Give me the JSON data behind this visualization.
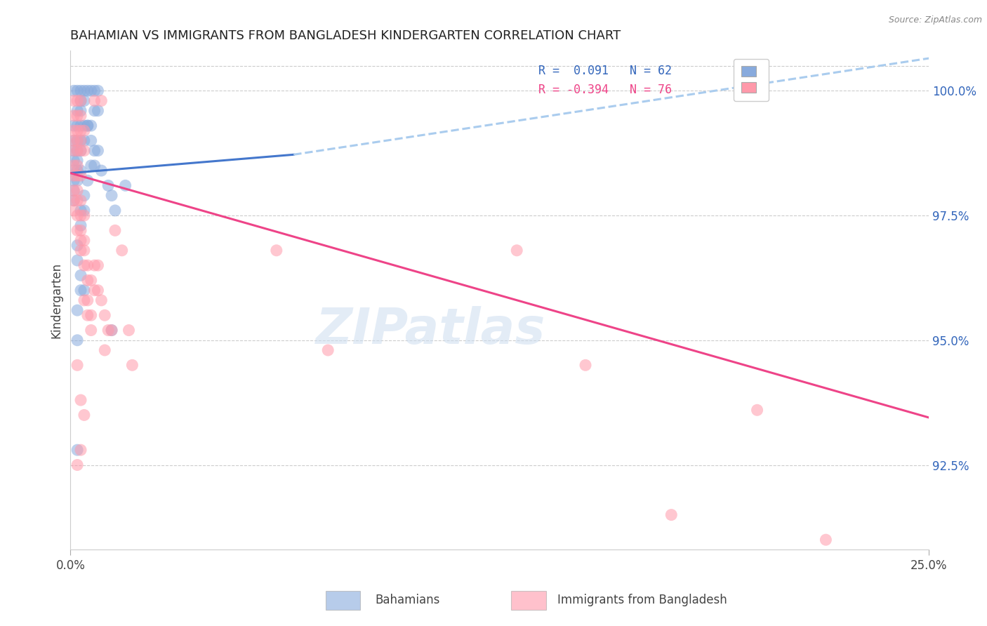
{
  "title": "BAHAMIAN VS IMMIGRANTS FROM BANGLADESH KINDERGARTEN CORRELATION CHART",
  "source": "Source: ZipAtlas.com",
  "ylabel_label": "Kindergarten",
  "legend_blue_label": "Bahamians",
  "legend_pink_label": "Immigrants from Bangladesh",
  "blue_R": 0.091,
  "blue_N": 62,
  "pink_R": -0.394,
  "pink_N": 76,
  "blue_color": "#88AADD",
  "pink_color": "#FF99AA",
  "blue_line_color": "#4477CC",
  "pink_line_color": "#EE4488",
  "dashed_line_color": "#AACCEE",
  "watermark": "ZIPatlas",
  "xmin": 0.0,
  "xmax": 0.25,
  "ymin": 90.8,
  "ymax": 100.8,
  "ytick_positions": [
    92.5,
    95.0,
    97.5,
    100.0
  ],
  "ytick_labels": [
    "92.5%",
    "95.0%",
    "97.5%",
    "100.0%"
  ],
  "xtick_positions": [
    0.0,
    0.25
  ],
  "xtick_labels": [
    "0.0%",
    "25.0%"
  ],
  "blue_line_x1": 0.0,
  "blue_line_y1": 98.35,
  "blue_line_x2_solid": 0.065,
  "blue_line_y2_solid": 98.72,
  "blue_line_x2_dashed": 0.25,
  "blue_line_y2_dashed": 100.65,
  "pink_line_x1": 0.0,
  "pink_line_y1": 98.35,
  "pink_line_x2": 0.25,
  "pink_line_y2": 93.45,
  "blue_scatter": [
    [
      0.001,
      100.0
    ],
    [
      0.002,
      100.0
    ],
    [
      0.003,
      100.0
    ],
    [
      0.004,
      100.0
    ],
    [
      0.005,
      100.0
    ],
    [
      0.006,
      100.0
    ],
    [
      0.007,
      100.0
    ],
    [
      0.008,
      100.0
    ],
    [
      0.002,
      99.6
    ],
    [
      0.003,
      99.6
    ],
    [
      0.007,
      99.6
    ],
    [
      0.008,
      99.6
    ],
    [
      0.003,
      99.8
    ],
    [
      0.004,
      99.8
    ],
    [
      0.001,
      99.3
    ],
    [
      0.002,
      99.3
    ],
    [
      0.003,
      99.3
    ],
    [
      0.005,
      99.3
    ],
    [
      0.006,
      99.3
    ],
    [
      0.004,
      99.3
    ],
    [
      0.005,
      99.3
    ],
    [
      0.001,
      99.0
    ],
    [
      0.002,
      99.0
    ],
    [
      0.003,
      99.0
    ],
    [
      0.004,
      99.0
    ],
    [
      0.001,
      98.8
    ],
    [
      0.002,
      98.8
    ],
    [
      0.003,
      98.8
    ],
    [
      0.001,
      98.6
    ],
    [
      0.002,
      98.6
    ],
    [
      0.001,
      98.4
    ],
    [
      0.002,
      98.4
    ],
    [
      0.003,
      98.4
    ],
    [
      0.001,
      98.2
    ],
    [
      0.002,
      98.2
    ],
    [
      0.001,
      98.0
    ],
    [
      0.001,
      97.8
    ],
    [
      0.007,
      98.8
    ],
    [
      0.008,
      98.8
    ],
    [
      0.006,
      98.5
    ],
    [
      0.007,
      98.5
    ],
    [
      0.006,
      99.0
    ],
    [
      0.005,
      98.2
    ],
    [
      0.004,
      97.9
    ],
    [
      0.003,
      97.6
    ],
    [
      0.004,
      97.6
    ],
    [
      0.003,
      97.3
    ],
    [
      0.002,
      96.9
    ],
    [
      0.002,
      96.6
    ],
    [
      0.003,
      96.3
    ],
    [
      0.003,
      96.0
    ],
    [
      0.004,
      96.0
    ],
    [
      0.002,
      95.6
    ],
    [
      0.002,
      95.0
    ],
    [
      0.002,
      92.8
    ],
    [
      0.009,
      98.4
    ],
    [
      0.011,
      98.1
    ],
    [
      0.012,
      97.9
    ],
    [
      0.016,
      98.1
    ],
    [
      0.013,
      97.6
    ],
    [
      0.012,
      95.2
    ]
  ],
  "pink_scatter": [
    [
      0.001,
      99.8
    ],
    [
      0.002,
      99.8
    ],
    [
      0.003,
      99.8
    ],
    [
      0.007,
      99.8
    ],
    [
      0.009,
      99.8
    ],
    [
      0.001,
      99.5
    ],
    [
      0.002,
      99.5
    ],
    [
      0.003,
      99.5
    ],
    [
      0.001,
      99.2
    ],
    [
      0.002,
      99.2
    ],
    [
      0.003,
      99.2
    ],
    [
      0.004,
      99.2
    ],
    [
      0.001,
      99.0
    ],
    [
      0.002,
      99.0
    ],
    [
      0.003,
      99.0
    ],
    [
      0.001,
      98.8
    ],
    [
      0.002,
      98.8
    ],
    [
      0.003,
      98.8
    ],
    [
      0.004,
      98.8
    ],
    [
      0.001,
      98.5
    ],
    [
      0.002,
      98.5
    ],
    [
      0.001,
      98.3
    ],
    [
      0.002,
      98.3
    ],
    [
      0.003,
      98.3
    ],
    [
      0.001,
      98.0
    ],
    [
      0.002,
      98.0
    ],
    [
      0.001,
      97.8
    ],
    [
      0.002,
      97.8
    ],
    [
      0.003,
      97.8
    ],
    [
      0.002,
      97.5
    ],
    [
      0.003,
      97.5
    ],
    [
      0.004,
      97.5
    ],
    [
      0.002,
      97.2
    ],
    [
      0.003,
      97.2
    ],
    [
      0.003,
      97.0
    ],
    [
      0.004,
      97.0
    ],
    [
      0.003,
      96.8
    ],
    [
      0.004,
      96.8
    ],
    [
      0.004,
      96.5
    ],
    [
      0.005,
      96.5
    ],
    [
      0.005,
      96.2
    ],
    [
      0.006,
      96.2
    ],
    [
      0.004,
      95.8
    ],
    [
      0.005,
      95.8
    ],
    [
      0.005,
      95.5
    ],
    [
      0.006,
      95.5
    ],
    [
      0.006,
      95.2
    ],
    [
      0.001,
      97.6
    ],
    [
      0.007,
      96.5
    ],
    [
      0.008,
      96.5
    ],
    [
      0.007,
      96.0
    ],
    [
      0.008,
      96.0
    ],
    [
      0.009,
      95.8
    ],
    [
      0.01,
      95.5
    ],
    [
      0.011,
      95.2
    ],
    [
      0.012,
      95.2
    ],
    [
      0.002,
      94.5
    ],
    [
      0.003,
      93.8
    ],
    [
      0.004,
      93.5
    ],
    [
      0.003,
      92.8
    ],
    [
      0.002,
      92.5
    ],
    [
      0.013,
      97.2
    ],
    [
      0.01,
      94.8
    ],
    [
      0.015,
      96.8
    ],
    [
      0.017,
      95.2
    ],
    [
      0.018,
      94.5
    ],
    [
      0.06,
      96.8
    ],
    [
      0.075,
      94.8
    ],
    [
      0.13,
      96.8
    ],
    [
      0.15,
      94.5
    ],
    [
      0.175,
      91.5
    ],
    [
      0.2,
      93.6
    ],
    [
      0.22,
      91.0
    ]
  ]
}
